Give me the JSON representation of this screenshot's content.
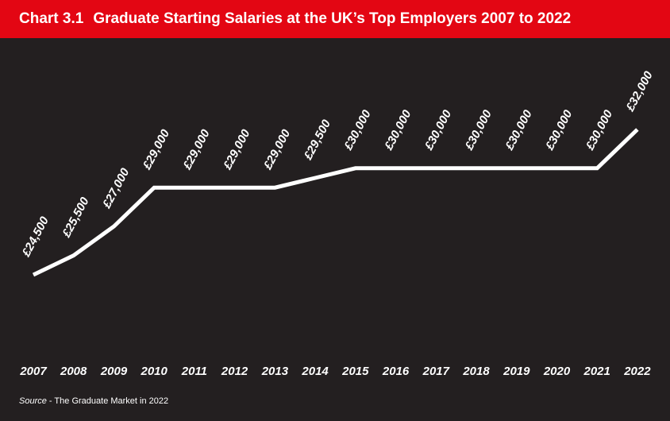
{
  "header": {
    "chart_number": "Chart 3.1",
    "title": "Graduate Starting Salaries at the UK’s Top Employers 2007 to 2022"
  },
  "source": {
    "label": "Source",
    "text": " - The Graduate Market in 2022"
  },
  "colors": {
    "header_bg": "#e30613",
    "background": "#231f20",
    "line": "#ffffff",
    "text": "#ffffff"
  },
  "chart_data": {
    "type": "line",
    "title": "Graduate Starting Salaries at the UK’s Top Employers 2007 to 2022",
    "xlabel": "",
    "ylabel": "",
    "x": [
      "2007",
      "2008",
      "2009",
      "2010",
      "2011",
      "2012",
      "2013",
      "2014",
      "2015",
      "2016",
      "2017",
      "2018",
      "2019",
      "2020",
      "2021",
      "2022"
    ],
    "values": [
      24500,
      25500,
      27000,
      29000,
      29000,
      29000,
      29000,
      29500,
      30000,
      30000,
      30000,
      30000,
      30000,
      30000,
      30000,
      32000
    ],
    "data_labels": [
      "£24,500",
      "£25,500",
      "£27,000",
      "£29,000",
      "£29,000",
      "£29,000",
      "£29,000",
      "£29,500",
      "£30,000",
      "£30,000",
      "£30,000",
      "£30,000",
      "£30,000",
      "£30,000",
      "£30,000",
      "£32,000"
    ],
    "ylim": [
      22000,
      33000
    ],
    "grid": false,
    "legend": "none"
  }
}
